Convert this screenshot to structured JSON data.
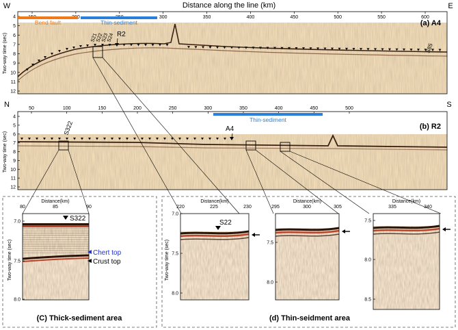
{
  "title_axis": "Distance along the line (km)",
  "panel_a": {
    "label": "(a) A4",
    "left_dir": "W",
    "right_dir": "E",
    "ticks": [
      "150",
      "200",
      "250",
      "300",
      "350",
      "400",
      "450",
      "500",
      "550",
      "600"
    ],
    "ylabel": "Two-way time (sec)",
    "yticks": [
      "4",
      "5",
      "6",
      "7",
      "8",
      "9",
      "10",
      "11",
      "12"
    ],
    "bars": [
      {
        "label": "Bend fault",
        "color": "#f07a1a"
      },
      {
        "label": "Thin-sediment",
        "color": "#2a7fd8"
      }
    ],
    "sites": [
      "S21",
      "S22",
      "S23",
      "S24"
    ],
    "crossing": "R2",
    "site_right": "S85"
  },
  "panel_b": {
    "label": "(b) R2",
    "left_dir": "N",
    "right_dir": "S",
    "ticks": [
      "50",
      "100",
      "150",
      "200",
      "250",
      "300",
      "350",
      "400",
      "450",
      "500"
    ],
    "ylabel": "Two-way time (sec)",
    "yticks": [
      "4",
      "5",
      "6",
      "7",
      "8",
      "9",
      "10",
      "11",
      "12"
    ],
    "bar": {
      "label": "Thin-sediment",
      "color": "#2a7fd8"
    },
    "site": "S322",
    "crossing": "A4"
  },
  "panel_c": {
    "caption": "(C) Thick-sediment area",
    "xlabel": "Distance(km)",
    "xticks": [
      "80",
      "85",
      "90"
    ],
    "ylabel": "Two-way time (sec)",
    "yticks": [
      "7.0",
      "7.5",
      "8.0"
    ],
    "site": "S322",
    "chert_label": "Chert top",
    "chert_color": "#1f2fd8",
    "crust_label": "Crust top"
  },
  "panel_d": {
    "caption": "(d) Thin-seidment area",
    "ylabel": "Two-way time (sec)",
    "sub1": {
      "xlabel": "Distance(km)",
      "xticks": [
        "220",
        "225",
        "230"
      ],
      "yticks": [
        "7.0",
        "7.5",
        "8.0"
      ],
      "site": "S22"
    },
    "sub2": {
      "xlabel": "Distance(km)",
      "xticks": [
        "295",
        "300",
        "305"
      ],
      "yticks": [
        "7.5",
        "8.0"
      ]
    },
    "sub3": {
      "xlabel": "Distance(km)",
      "xticks": [
        "335",
        "340"
      ],
      "yticks": [
        "7.5",
        "8.0",
        "8.5"
      ]
    }
  }
}
